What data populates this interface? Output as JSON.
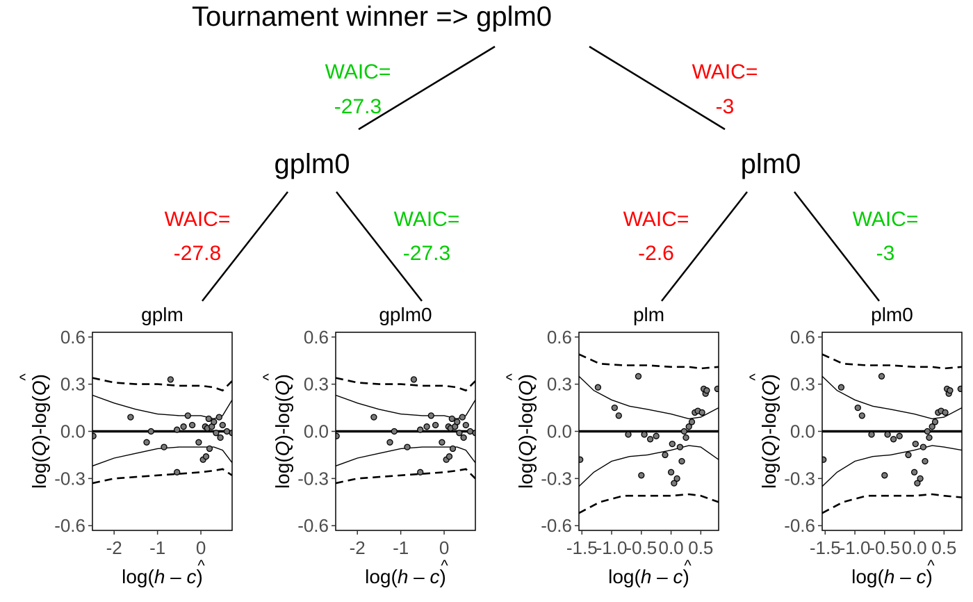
{
  "tree": {
    "title": "Tournament winner  =>  gplm0",
    "nodes": {
      "root": "gplm0",
      "left": "gplm0",
      "right": "plm0"
    },
    "waic_label": "WAIC=",
    "edges": [
      {
        "value": "-27.3",
        "color": "#00cc00"
      },
      {
        "value": "-3",
        "color": "#ff0000"
      },
      {
        "value": "-27.8",
        "color": "#ff0000"
      },
      {
        "value": "-27.3",
        "color": "#00cc00"
      },
      {
        "value": "-2.6",
        "color": "#ff0000"
      },
      {
        "value": "-3",
        "color": "#00cc00"
      }
    ]
  },
  "axis_text": {
    "y_log": "log(",
    "y_Q": "Q",
    "y_close": ")",
    "y_dash": "-",
    "y_hat": "^",
    "x_log": "log(",
    "x_h": "h",
    "x_minus": " – ",
    "x_c": "c",
    "x_close": ")",
    "x_hat": "^"
  },
  "chart_data": [
    {
      "type": "scatter",
      "title": "gplm",
      "xlim": [
        -2.5,
        0.72
      ],
      "ylim": [
        -0.63,
        0.63
      ],
      "xticks": [
        {
          "v": -2,
          "label": "-2"
        },
        {
          "v": -1,
          "label": "-1"
        },
        {
          "v": 0,
          "label": "0"
        }
      ],
      "yticks": [
        {
          "v": 0.6,
          "label": "0.6"
        },
        {
          "v": 0.3,
          "label": "0.3"
        },
        {
          "v": 0.0,
          "label": "0.0"
        },
        {
          "v": -0.3,
          "label": "-0.3"
        },
        {
          "v": -0.6,
          "label": "-0.6"
        }
      ],
      "points": [
        [
          -2.48,
          -0.03
        ],
        [
          -1.62,
          0.09
        ],
        [
          -1.15,
          0.0
        ],
        [
          -1.25,
          -0.07
        ],
        [
          -0.85,
          -0.1
        ],
        [
          -0.7,
          0.33
        ],
        [
          -0.55,
          0.01
        ],
        [
          -0.55,
          -0.26
        ],
        [
          -0.4,
          0.03
        ],
        [
          -0.3,
          0.1
        ],
        [
          -0.2,
          0.04
        ],
        [
          -0.05,
          -0.07
        ],
        [
          0.05,
          -0.18
        ],
        [
          0.1,
          0.03
        ],
        [
          0.12,
          -0.16
        ],
        [
          0.15,
          0.02
        ],
        [
          0.18,
          0.08
        ],
        [
          0.2,
          -0.11
        ],
        [
          0.25,
          0.03
        ],
        [
          0.3,
          0.06
        ],
        [
          0.35,
          -0.01
        ],
        [
          0.42,
          0.09
        ],
        [
          0.45,
          -0.04
        ],
        [
          0.5,
          0.04
        ],
        [
          0.6,
          0.0
        ],
        [
          0.72,
          -0.01
        ]
      ],
      "series": [
        {
          "name": "upper_pred",
          "dashed": true,
          "x": [
            -2.5,
            -2.0,
            -1.5,
            -1.0,
            -0.5,
            0.0,
            0.3,
            0.5,
            0.72
          ],
          "y": [
            0.34,
            0.31,
            0.3,
            0.3,
            0.29,
            0.29,
            0.28,
            0.26,
            0.32
          ]
        },
        {
          "name": "lower_pred",
          "dashed": true,
          "x": [
            -2.5,
            -2.0,
            -1.5,
            -1.0,
            -0.5,
            0.0,
            0.3,
            0.5,
            0.72
          ],
          "y": [
            -0.33,
            -0.3,
            -0.29,
            -0.28,
            -0.27,
            -0.26,
            -0.25,
            -0.24,
            -0.28
          ]
        },
        {
          "name": "upper_ci",
          "dashed": false,
          "x": [
            -2.5,
            -2.0,
            -1.5,
            -1.0,
            -0.5,
            0.0,
            0.3,
            0.5,
            0.72
          ],
          "y": [
            0.23,
            0.18,
            0.14,
            0.11,
            0.1,
            0.1,
            0.08,
            0.1,
            0.2
          ]
        },
        {
          "name": "lower_ci",
          "dashed": false,
          "x": [
            -2.5,
            -2.0,
            -1.5,
            -1.0,
            -0.5,
            0.0,
            0.3,
            0.5,
            0.72
          ],
          "y": [
            -0.22,
            -0.17,
            -0.14,
            -0.11,
            -0.1,
            -0.1,
            -0.1,
            -0.12,
            -0.2
          ]
        }
      ]
    },
    {
      "type": "scatter",
      "title": "gplm0",
      "xlim": [
        -2.5,
        0.72
      ],
      "ylim": [
        -0.63,
        0.63
      ],
      "xticks": [
        {
          "v": -2,
          "label": "-2"
        },
        {
          "v": -1,
          "label": "-1"
        },
        {
          "v": 0,
          "label": "0"
        }
      ],
      "yticks": [
        {
          "v": 0.6,
          "label": "0.6"
        },
        {
          "v": 0.3,
          "label": "0.3"
        },
        {
          "v": 0.0,
          "label": "0.0"
        },
        {
          "v": -0.3,
          "label": "-0.3"
        },
        {
          "v": -0.6,
          "label": "-0.6"
        }
      ],
      "points": [
        [
          -2.48,
          -0.03
        ],
        [
          -1.62,
          0.09
        ],
        [
          -1.15,
          0.0
        ],
        [
          -1.25,
          -0.07
        ],
        [
          -0.85,
          -0.1
        ],
        [
          -0.7,
          0.33
        ],
        [
          -0.55,
          0.01
        ],
        [
          -0.55,
          -0.26
        ],
        [
          -0.4,
          0.03
        ],
        [
          -0.3,
          0.1
        ],
        [
          -0.2,
          0.04
        ],
        [
          -0.05,
          -0.07
        ],
        [
          0.05,
          -0.18
        ],
        [
          0.1,
          0.03
        ],
        [
          0.12,
          -0.16
        ],
        [
          0.15,
          0.02
        ],
        [
          0.18,
          0.08
        ],
        [
          0.2,
          -0.11
        ],
        [
          0.25,
          0.03
        ],
        [
          0.3,
          0.06
        ],
        [
          0.35,
          -0.01
        ],
        [
          0.42,
          0.09
        ],
        [
          0.45,
          -0.04
        ],
        [
          0.5,
          0.04
        ],
        [
          0.6,
          0.0
        ],
        [
          0.72,
          -0.01
        ]
      ],
      "series": [
        {
          "name": "upper_pred",
          "dashed": true,
          "x": [
            -2.5,
            -2.0,
            -1.5,
            -1.0,
            -0.5,
            0.0,
            0.3,
            0.5,
            0.72
          ],
          "y": [
            0.34,
            0.31,
            0.3,
            0.3,
            0.29,
            0.29,
            0.28,
            0.26,
            0.32
          ]
        },
        {
          "name": "lower_pred",
          "dashed": true,
          "x": [
            -2.5,
            -2.0,
            -1.5,
            -1.0,
            -0.5,
            0.0,
            0.3,
            0.5,
            0.72
          ],
          "y": [
            -0.33,
            -0.3,
            -0.29,
            -0.28,
            -0.27,
            -0.26,
            -0.25,
            -0.24,
            -0.3
          ]
        },
        {
          "name": "upper_ci",
          "dashed": false,
          "x": [
            -2.5,
            -2.0,
            -1.5,
            -1.0,
            -0.5,
            0.0,
            0.3,
            0.5,
            0.72
          ],
          "y": [
            0.23,
            0.18,
            0.14,
            0.11,
            0.1,
            0.1,
            0.08,
            0.1,
            0.2
          ]
        },
        {
          "name": "lower_ci",
          "dashed": false,
          "x": [
            -2.5,
            -2.0,
            -1.5,
            -1.0,
            -0.5,
            0.0,
            0.3,
            0.5,
            0.72
          ],
          "y": [
            -0.22,
            -0.17,
            -0.14,
            -0.11,
            -0.1,
            -0.1,
            -0.1,
            -0.12,
            -0.2
          ]
        }
      ]
    },
    {
      "type": "scatter",
      "title": "plm",
      "xlim": [
        -1.55,
        0.8
      ],
      "ylim": [
        -0.63,
        0.63
      ],
      "xticks": [
        {
          "v": -1.5,
          "label": "-1.5"
        },
        {
          "v": -1.0,
          "label": "-1.0"
        },
        {
          "v": -0.5,
          "label": "-0.5"
        },
        {
          "v": 0.0,
          "label": "0.0"
        },
        {
          "v": 0.5,
          "label": "0.5"
        }
      ],
      "yticks": [
        {
          "v": 0.6,
          "label": "0.6"
        },
        {
          "v": 0.3,
          "label": "0.3"
        },
        {
          "v": 0.0,
          "label": "0.0"
        },
        {
          "v": -0.3,
          "label": "-0.3"
        },
        {
          "v": -0.6,
          "label": "-0.6"
        }
      ],
      "points": [
        [
          -1.53,
          -0.18
        ],
        [
          -1.23,
          0.28
        ],
        [
          -0.95,
          0.15
        ],
        [
          -0.88,
          0.1
        ],
        [
          -0.72,
          -0.02
        ],
        [
          -0.55,
          0.35
        ],
        [
          -0.5,
          -0.28
        ],
        [
          -0.45,
          -0.02
        ],
        [
          -0.35,
          -0.05
        ],
        [
          -0.25,
          -0.03
        ],
        [
          -0.1,
          -0.15
        ],
        [
          0.0,
          -0.26
        ],
        [
          0.02,
          -0.08
        ],
        [
          0.05,
          -0.33
        ],
        [
          0.1,
          -0.3
        ],
        [
          0.15,
          -0.1
        ],
        [
          0.18,
          -0.19
        ],
        [
          0.22,
          0.0
        ],
        [
          0.25,
          -0.04
        ],
        [
          0.3,
          0.03
        ],
        [
          0.35,
          0.06
        ],
        [
          0.4,
          0.12
        ],
        [
          0.45,
          0.13
        ],
        [
          0.52,
          0.12
        ],
        [
          0.55,
          0.27
        ],
        [
          0.58,
          0.24
        ],
        [
          0.6,
          0.26
        ],
        [
          0.78,
          0.27
        ]
      ],
      "series": [
        {
          "name": "upper_pred",
          "dashed": true,
          "x": [
            -1.55,
            -1.2,
            -0.8,
            -0.4,
            0.0,
            0.3,
            0.5,
            0.8
          ],
          "y": [
            0.49,
            0.43,
            0.42,
            0.42,
            0.41,
            0.41,
            0.4,
            0.41
          ]
        },
        {
          "name": "lower_pred",
          "dashed": true,
          "x": [
            -1.55,
            -1.2,
            -0.8,
            -0.4,
            0.0,
            0.3,
            0.5,
            0.8
          ],
          "y": [
            -0.52,
            -0.45,
            -0.41,
            -0.41,
            -0.41,
            -0.4,
            -0.41,
            -0.45
          ]
        },
        {
          "name": "upper_ci",
          "dashed": false,
          "x": [
            -1.55,
            -1.3,
            -1.0,
            -0.7,
            -0.4,
            0.0,
            0.3,
            0.5,
            0.8
          ],
          "y": [
            0.35,
            0.26,
            0.2,
            0.16,
            0.14,
            0.11,
            0.08,
            0.09,
            0.15
          ]
        },
        {
          "name": "lower_ci",
          "dashed": false,
          "x": [
            -1.55,
            -1.3,
            -1.0,
            -0.7,
            -0.4,
            0.0,
            0.3,
            0.5,
            0.8
          ],
          "y": [
            -0.35,
            -0.26,
            -0.19,
            -0.16,
            -0.15,
            -0.12,
            -0.09,
            -0.1,
            -0.18
          ]
        }
      ]
    },
    {
      "type": "scatter",
      "title": "plm0",
      "xlim": [
        -1.55,
        0.8
      ],
      "ylim": [
        -0.63,
        0.63
      ],
      "xticks": [
        {
          "v": -1.5,
          "label": "-1.5"
        },
        {
          "v": -1.0,
          "label": "-1.0"
        },
        {
          "v": -0.5,
          "label": "-0.5"
        },
        {
          "v": 0.0,
          "label": "0.0"
        },
        {
          "v": 0.5,
          "label": "0.5"
        }
      ],
      "yticks": [
        {
          "v": 0.6,
          "label": "0.6"
        },
        {
          "v": 0.3,
          "label": "0.3"
        },
        {
          "v": 0.0,
          "label": "0.0"
        },
        {
          "v": -0.3,
          "label": "-0.3"
        },
        {
          "v": -0.6,
          "label": "-0.6"
        }
      ],
      "points": [
        [
          -1.53,
          -0.18
        ],
        [
          -1.23,
          0.28
        ],
        [
          -0.95,
          0.15
        ],
        [
          -0.88,
          0.1
        ],
        [
          -0.72,
          -0.02
        ],
        [
          -0.55,
          0.35
        ],
        [
          -0.5,
          -0.28
        ],
        [
          -0.45,
          -0.02
        ],
        [
          -0.35,
          -0.05
        ],
        [
          -0.25,
          -0.03
        ],
        [
          -0.1,
          -0.15
        ],
        [
          0.0,
          -0.26
        ],
        [
          0.02,
          -0.08
        ],
        [
          0.05,
          -0.33
        ],
        [
          0.1,
          -0.3
        ],
        [
          0.15,
          -0.1
        ],
        [
          0.18,
          -0.19
        ],
        [
          0.22,
          0.0
        ],
        [
          0.25,
          -0.04
        ],
        [
          0.3,
          0.03
        ],
        [
          0.35,
          0.06
        ],
        [
          0.4,
          0.12
        ],
        [
          0.45,
          0.13
        ],
        [
          0.52,
          0.12
        ],
        [
          0.55,
          0.27
        ],
        [
          0.58,
          0.24
        ],
        [
          0.6,
          0.26
        ],
        [
          0.78,
          0.27
        ]
      ],
      "series": [
        {
          "name": "upper_pred",
          "dashed": true,
          "x": [
            -1.55,
            -1.2,
            -0.8,
            -0.4,
            0.0,
            0.3,
            0.5,
            0.8
          ],
          "y": [
            0.49,
            0.43,
            0.42,
            0.42,
            0.41,
            0.41,
            0.4,
            0.41
          ]
        },
        {
          "name": "lower_pred",
          "dashed": true,
          "x": [
            -1.55,
            -1.2,
            -0.8,
            -0.4,
            0.0,
            0.3,
            0.5,
            0.8
          ],
          "y": [
            -0.52,
            -0.45,
            -0.41,
            -0.41,
            -0.41,
            -0.4,
            -0.41,
            -0.42
          ]
        },
        {
          "name": "upper_ci",
          "dashed": false,
          "x": [
            -1.55,
            -1.3,
            -1.0,
            -0.7,
            -0.4,
            0.0,
            0.3,
            0.5,
            0.8
          ],
          "y": [
            0.35,
            0.26,
            0.2,
            0.16,
            0.14,
            0.11,
            0.08,
            0.09,
            0.15
          ]
        },
        {
          "name": "lower_ci",
          "dashed": false,
          "x": [
            -1.55,
            -1.3,
            -1.0,
            -0.7,
            -0.4,
            0.0,
            0.3,
            0.5,
            0.8
          ],
          "y": [
            -0.35,
            -0.26,
            -0.19,
            -0.16,
            -0.15,
            -0.12,
            -0.09,
            -0.1,
            -0.12
          ]
        }
      ]
    }
  ]
}
